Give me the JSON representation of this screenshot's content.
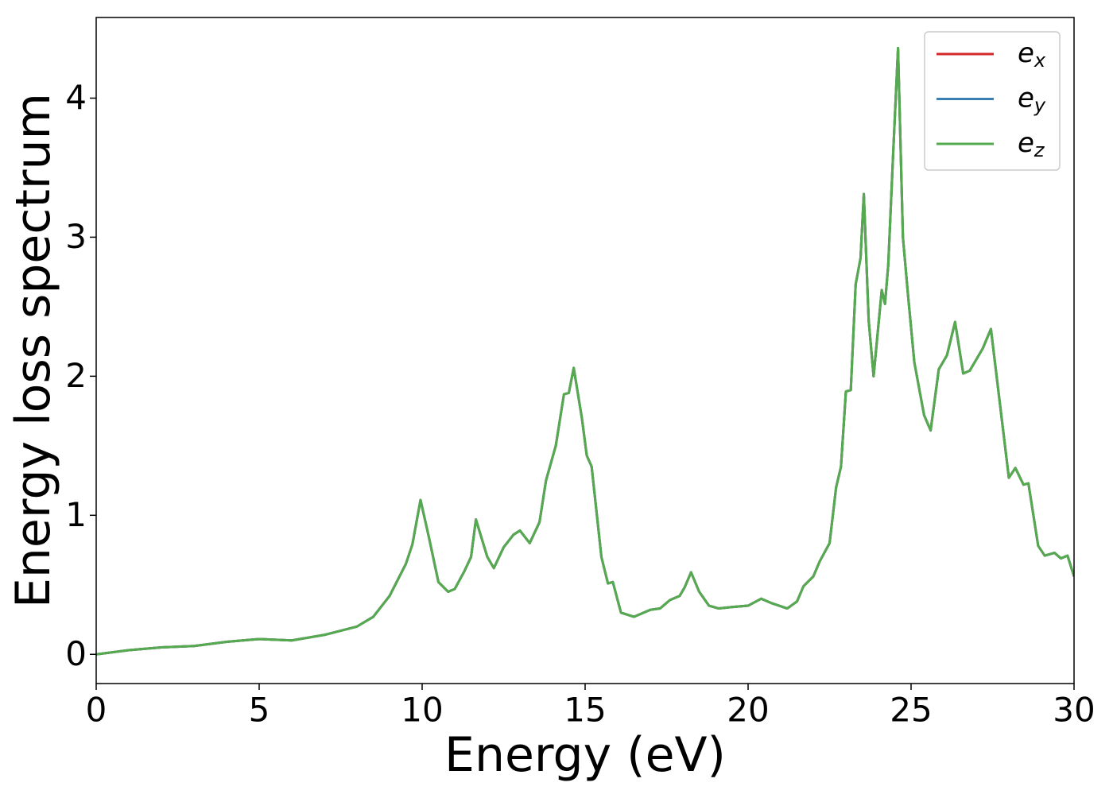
{
  "chart_data": {
    "type": "line",
    "x_label": "Energy (eV)",
    "y_label": "Energy loss spectrum",
    "x": [
      0,
      1,
      2,
      3,
      4,
      5,
      6,
      7,
      7.5,
      8,
      8.5,
      9,
      9.5,
      9.7,
      9.95,
      10.2,
      10.5,
      10.8,
      11,
      11.3,
      11.5,
      11.65,
      12,
      12.2,
      12.5,
      12.8,
      13,
      13.3,
      13.6,
      13.8,
      14.1,
      14.35,
      14.5,
      14.65,
      14.9,
      15.05,
      15.2,
      15.5,
      15.7,
      15.85,
      16.1,
      16.5,
      17,
      17.3,
      17.6,
      17.9,
      18.05,
      18.25,
      18.5,
      18.8,
      19.1,
      19.5,
      20,
      20.4,
      20.7,
      21.2,
      21.5,
      21.7,
      22,
      22.2,
      22.5,
      22.7,
      22.85,
      23,
      23.15,
      23.3,
      23.45,
      23.55,
      23.7,
      23.85,
      24.1,
      24.2,
      24.3,
      24.45,
      24.6,
      24.75,
      24.9,
      25.1,
      25.4,
      25.6,
      25.85,
      26.1,
      26.35,
      26.6,
      26.8,
      27.2,
      27.45,
      27.65,
      28,
      28.2,
      28.45,
      28.6,
      28.9,
      29.1,
      29.4,
      29.6,
      29.8,
      30
    ],
    "series": [
      {
        "name": "e_x",
        "color": "#d62728",
        "values": [
          0,
          0.03,
          0.05,
          0.06,
          0.09,
          0.11,
          0.1,
          0.14,
          0.17,
          0.2,
          0.27,
          0.42,
          0.65,
          0.79,
          1.11,
          0.85,
          0.52,
          0.45,
          0.47,
          0.6,
          0.7,
          0.97,
          0.7,
          0.62,
          0.77,
          0.86,
          0.89,
          0.8,
          0.95,
          1.25,
          1.5,
          1.87,
          1.88,
          2.06,
          1.7,
          1.43,
          1.35,
          0.7,
          0.51,
          0.52,
          0.3,
          0.27,
          0.32,
          0.33,
          0.39,
          0.42,
          0.48,
          0.59,
          0.45,
          0.35,
          0.33,
          0.34,
          0.35,
          0.4,
          0.37,
          0.33,
          0.38,
          0.49,
          0.56,
          0.67,
          0.8,
          1.2,
          1.35,
          1.89,
          1.9,
          2.66,
          2.85,
          3.31,
          2.4,
          2.0,
          2.62,
          2.52,
          2.8,
          3.6,
          4.36,
          3.0,
          2.6,
          2.1,
          1.72,
          1.61,
          2.05,
          2.15,
          2.39,
          2.02,
          2.04,
          2.2,
          2.34,
          1.95,
          1.27,
          1.34,
          1.22,
          1.23,
          0.78,
          0.71,
          0.73,
          0.69,
          0.71,
          0.56
        ]
      },
      {
        "name": "e_y",
        "color": "#3a7fb2",
        "values": [
          0,
          0.03,
          0.05,
          0.06,
          0.09,
          0.11,
          0.1,
          0.14,
          0.17,
          0.2,
          0.27,
          0.42,
          0.65,
          0.79,
          1.11,
          0.85,
          0.52,
          0.45,
          0.47,
          0.6,
          0.7,
          0.97,
          0.7,
          0.62,
          0.77,
          0.86,
          0.89,
          0.8,
          0.95,
          1.25,
          1.5,
          1.87,
          1.88,
          2.06,
          1.7,
          1.43,
          1.35,
          0.7,
          0.51,
          0.52,
          0.3,
          0.27,
          0.32,
          0.33,
          0.39,
          0.42,
          0.48,
          0.59,
          0.45,
          0.35,
          0.33,
          0.34,
          0.35,
          0.4,
          0.37,
          0.33,
          0.38,
          0.49,
          0.56,
          0.67,
          0.8,
          1.2,
          1.35,
          1.89,
          1.9,
          2.66,
          2.85,
          3.31,
          2.4,
          2.0,
          2.62,
          2.52,
          2.8,
          3.6,
          4.36,
          3.0,
          2.6,
          2.1,
          1.72,
          1.61,
          2.05,
          2.15,
          2.39,
          2.02,
          2.04,
          2.2,
          2.34,
          1.95,
          1.27,
          1.34,
          1.22,
          1.23,
          0.78,
          0.71,
          0.73,
          0.69,
          0.71,
          0.56
        ]
      },
      {
        "name": "e_z",
        "color": "#55aa50",
        "values": [
          0,
          0.03,
          0.05,
          0.06,
          0.09,
          0.11,
          0.1,
          0.14,
          0.17,
          0.2,
          0.27,
          0.42,
          0.65,
          0.79,
          1.11,
          0.85,
          0.52,
          0.45,
          0.47,
          0.6,
          0.7,
          0.97,
          0.7,
          0.62,
          0.77,
          0.86,
          0.89,
          0.8,
          0.95,
          1.25,
          1.5,
          1.87,
          1.88,
          2.06,
          1.7,
          1.43,
          1.35,
          0.7,
          0.51,
          0.52,
          0.3,
          0.27,
          0.32,
          0.33,
          0.39,
          0.42,
          0.48,
          0.59,
          0.45,
          0.35,
          0.33,
          0.34,
          0.35,
          0.4,
          0.37,
          0.33,
          0.38,
          0.49,
          0.56,
          0.67,
          0.8,
          1.2,
          1.35,
          1.89,
          1.9,
          2.66,
          2.85,
          3.31,
          2.4,
          2.0,
          2.62,
          2.52,
          2.8,
          3.6,
          4.36,
          3.0,
          2.6,
          2.1,
          1.72,
          1.61,
          2.05,
          2.15,
          2.39,
          2.02,
          2.04,
          2.2,
          2.34,
          1.95,
          1.27,
          1.34,
          1.22,
          1.23,
          0.78,
          0.71,
          0.73,
          0.69,
          0.71,
          0.56
        ]
      }
    ],
    "xlim": [
      0,
      30
    ],
    "xticks": [
      0,
      5,
      10,
      15,
      20,
      25,
      30
    ],
    "ylim": [
      -0.21,
      4.58
    ],
    "yticks": [
      0,
      1,
      2,
      3,
      4
    ],
    "grid": false,
    "legend": "upper right"
  }
}
